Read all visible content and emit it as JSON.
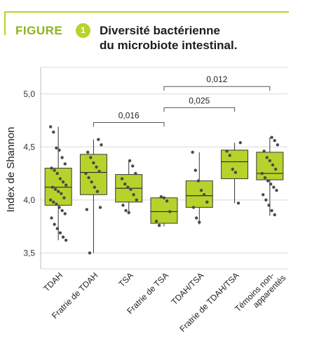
{
  "header": {
    "figure_label": "FIGURE",
    "figure_number": "1",
    "title_line1": "Diversité bactérienne",
    "title_line2": "du microbiote intestinal."
  },
  "colors": {
    "accent": "#b9d32a",
    "box_fill": "#b7d22b",
    "point": "#4a4a4a",
    "grid": "#d9d9d9",
    "bracket": "#555555"
  },
  "chart_data": {
    "type": "box",
    "title": "",
    "xlabel": "",
    "ylabel": "Index de Shannon",
    "ylim": [
      3.35,
      5.25
    ],
    "yticks": [
      {
        "value": 3.5,
        "label": "3,5"
      },
      {
        "value": 4.0,
        "label": "4,0"
      },
      {
        "value": 4.5,
        "label": "4,5"
      },
      {
        "value": 5.0,
        "label": "5,0"
      }
    ],
    "grid": "horizontal",
    "categories": [
      "TDAH",
      "Fratrie de TDAH",
      "TSA",
      "Fratrie de TSA",
      "TDAH/TSA",
      "Fratrie de TDAH/TSA",
      "Témoins non-apparentés"
    ],
    "category_lines": [
      [
        "TDAH"
      ],
      [
        "Fratrie de TDAH"
      ],
      [
        "TSA"
      ],
      [
        "Fratrie de TSA"
      ],
      [
        "TDAH/TSA"
      ],
      [
        "Fratrie de TDAH/TSA"
      ],
      [
        "Témoins non-",
        "apparentés"
      ]
    ],
    "boxes": [
      {
        "category": "TDAH",
        "q1": 3.95,
        "median": 4.12,
        "q3": 4.3,
        "whisker_low": 3.62,
        "whisker_high": 4.69
      },
      {
        "category": "Fratrie de TDAH",
        "q1": 4.05,
        "median": 4.26,
        "q3": 4.43,
        "whisker_low": 3.5,
        "whisker_high": 4.57
      },
      {
        "category": "TSA",
        "q1": 3.98,
        "median": 4.11,
        "q3": 4.24,
        "whisker_low": 3.88,
        "whisker_high": 4.37
      },
      {
        "category": "Fratrie de TSA",
        "q1": 3.78,
        "median": 3.89,
        "q3": 4.02,
        "whisker_low": 3.75,
        "whisker_high": 4.03
      },
      {
        "category": "TDAH/TSA",
        "q1": 3.93,
        "median": 4.04,
        "q3": 4.18,
        "whisker_low": 3.77,
        "whisker_high": 4.45
      },
      {
        "category": "Fratrie de TDAH/TSA",
        "q1": 4.2,
        "median": 4.36,
        "q3": 4.47,
        "whisker_low": 3.97,
        "whisker_high": 4.54
      },
      {
        "category": "Témoins non-apparentés",
        "q1": 4.19,
        "median": 4.25,
        "q3": 4.45,
        "whisker_low": 3.85,
        "whisker_high": 4.59
      }
    ],
    "points": [
      [
        4.69,
        4.64,
        4.49,
        4.47,
        4.4,
        4.34,
        4.3,
        4.28,
        4.25,
        4.2,
        4.17,
        4.14,
        4.12,
        4.1,
        4.08,
        4.06,
        4.02,
        4.0,
        3.98,
        3.96,
        3.93,
        3.9,
        3.87,
        3.83,
        3.77,
        3.73,
        3.69,
        3.65,
        3.62
      ],
      [
        4.57,
        4.52,
        4.45,
        4.4,
        4.35,
        4.31,
        4.27,
        4.25,
        4.21,
        4.17,
        4.12,
        4.08,
        3.93,
        3.91,
        3.5
      ],
      [
        4.37,
        4.32,
        4.25,
        4.2,
        4.15,
        4.12,
        4.1,
        4.05,
        4.0,
        3.95,
        3.9,
        3.88
      ],
      [
        4.03,
        4.02,
        3.99,
        3.89,
        3.8,
        3.76
      ],
      [
        4.45,
        4.28,
        4.18,
        4.09,
        4.05,
        3.98,
        3.93,
        3.83,
        3.79
      ],
      [
        4.54,
        4.46,
        4.42,
        4.29,
        4.26,
        3.97
      ],
      [
        4.59,
        4.56,
        4.52,
        4.46,
        4.4,
        4.37,
        4.33,
        4.29,
        4.25,
        4.21,
        4.18,
        4.15,
        4.12,
        4.09,
        4.05,
        4.0,
        3.95,
        3.9,
        3.86
      ]
    ],
    "annotations": [
      {
        "from": "Fratrie de TDAH",
        "to": "Fratrie de TSA",
        "level": 4.73,
        "label": "0,016"
      },
      {
        "from": "Fratrie de TSA",
        "to": "Fratrie de TDAH/TSA",
        "level": 4.87,
        "label": "0,025"
      },
      {
        "from": "Fratrie de TSA",
        "to": "Témoins non-apparentés",
        "level": 5.07,
        "label": "0,012"
      }
    ]
  }
}
